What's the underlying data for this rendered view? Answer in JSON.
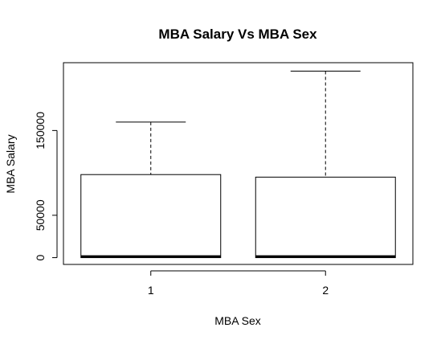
{
  "chart_data": {
    "type": "boxplot",
    "title": "MBA Salary Vs MBA Sex",
    "xlabel": "MBA Sex",
    "ylabel": "MBA Salary",
    "categories": [
      "1",
      "2"
    ],
    "boxes": [
      {
        "category": "1",
        "min": 0,
        "q1": 0,
        "median": 0,
        "q3": 98000,
        "max": 160000
      },
      {
        "category": "2",
        "min": 0,
        "q1": 0,
        "median": 0,
        "q3": 95000,
        "max": 220000
      }
    ],
    "y_ticks": [
      0,
      50000,
      150000
    ],
    "y_tick_labels": [
      "0",
      "50000",
      "150000"
    ],
    "ylim": [
      -8000,
      230000
    ],
    "grid": false,
    "legend": "none"
  }
}
